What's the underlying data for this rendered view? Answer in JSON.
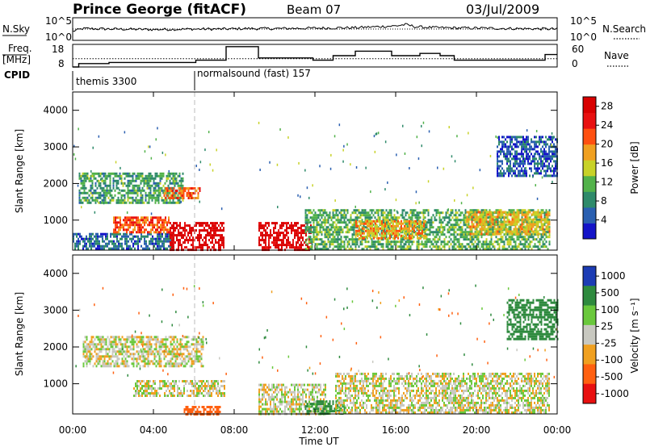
{
  "header": {
    "station": "Prince George (fitACF)",
    "beam": "Beam 07",
    "date": "03/Jul/2009"
  },
  "strip_panels": {
    "nsky": {
      "label": "N.Sky",
      "right_label": "N.Search",
      "tick_top": "10^5",
      "tick_bottom": "10^0"
    },
    "freq": {
      "label_top": "Freq.",
      "label_bottom": "[MHz]",
      "right_label": "Nave",
      "ticks_left": [
        "18",
        "8"
      ],
      "ticks_right": [
        "60",
        "0"
      ]
    },
    "cpid": {
      "label": "CPID",
      "segments": [
        "themis 3300",
        "normalsound (fast) 157"
      ]
    }
  },
  "axes": {
    "ylabel": "Slant Range [km]",
    "xlabel": "Time UT",
    "y_ticks": [
      "1000",
      "2000",
      "3000",
      "4000"
    ],
    "x_ticks": [
      "00:00",
      "04:00",
      "08:00",
      "12:00",
      "16:00",
      "20:00",
      "00:00"
    ]
  },
  "colorbars": {
    "power": {
      "label": "Power [dB]",
      "ticks": [
        "4",
        "8",
        "12",
        "16",
        "20",
        "24",
        "28"
      ]
    },
    "velocity": {
      "label": "Velocity [m s⁻¹]",
      "ticks": [
        "1000",
        "500",
        "100",
        "25",
        "-25",
        "-100",
        "-500",
        "-1000"
      ]
    }
  },
  "chart_data": [
    {
      "type": "line",
      "title": "N.Sky / N.Search",
      "x_unit": "hours UT",
      "x": [
        0,
        0.5,
        2,
        4,
        6,
        7.5,
        8.5,
        10,
        12,
        14,
        16,
        16.5,
        17,
        18,
        20,
        22,
        24
      ],
      "series": [
        {
          "name": "N.Sky",
          "values": [
            2,
            2.6,
            2.5,
            2.4,
            2.5,
            2.5,
            2.6,
            2.6,
            2.7,
            2.8,
            3.2,
            3.5,
            3.0,
            2.8,
            2.7,
            2.6,
            2.5
          ]
        }
      ],
      "ylim": [
        0,
        5
      ],
      "y_scale": "log10"
    },
    {
      "type": "line",
      "title": "Freq. [MHz] / Nave",
      "x_unit": "hours UT",
      "series": [
        {
          "name": "Freq.",
          "x": [
            0,
            0.3,
            0.3,
            1.8,
            1.8,
            6.1,
            6.1,
            7.6,
            7.6,
            9.2,
            9.2,
            11.9,
            11.9,
            12.9,
            12.9,
            14.0,
            14.0,
            15.8,
            15.8,
            17.2,
            17.2,
            18.2,
            18.2,
            18.9,
            18.9,
            23.4,
            23.4,
            24
          ],
          "values": [
            8,
            8,
            9.5,
            9.5,
            10,
            10,
            11,
            11,
            17,
            17,
            12,
            12,
            11,
            11,
            13,
            13,
            15,
            15,
            13,
            13,
            14,
            14,
            13,
            13,
            11,
            11,
            13.5,
            13.5
          ]
        },
        {
          "name": "Nave",
          "x": [
            0,
            24
          ],
          "values": [
            22,
            22
          ]
        }
      ],
      "ylim": [
        8,
        18
      ],
      "y2lim": [
        0,
        60
      ]
    },
    {
      "type": "heatmap",
      "title": "Power [dB]",
      "x_unit": "hours UT",
      "y_unit": "km",
      "xlim": [
        0,
        24
      ],
      "ylim": [
        180,
        4500
      ],
      "gap_no_data_hours": [
        [
          7.6,
          9.1
        ]
      ],
      "colorbar_range_db": [
        0,
        30
      ],
      "regions": [
        {
          "t0": 0.0,
          "t1": 5.0,
          "r0": 200,
          "r1": 650,
          "value": 6
        },
        {
          "t0": 0.3,
          "t1": 5.5,
          "r0": 1500,
          "r1": 2300,
          "value": 10
        },
        {
          "t0": 2.0,
          "t1": 4.8,
          "r0": 700,
          "r1": 1100,
          "value": 22
        },
        {
          "t0": 4.8,
          "t1": 7.5,
          "r0": 200,
          "r1": 950,
          "value": 29
        },
        {
          "t0": 4.5,
          "t1": 6.3,
          "r0": 1600,
          "r1": 1900,
          "value": 21
        },
        {
          "t0": 9.2,
          "t1": 11.8,
          "r0": 200,
          "r1": 950,
          "value": 29
        },
        {
          "t0": 11.5,
          "t1": 23.6,
          "r0": 200,
          "r1": 1300,
          "value": 11
        },
        {
          "t0": 14.0,
          "t1": 17.5,
          "r0": 500,
          "r1": 1000,
          "value": 18
        },
        {
          "t0": 19.5,
          "t1": 23.6,
          "r0": 650,
          "r1": 1250,
          "value": 17
        },
        {
          "t0": 21.0,
          "t1": 24.0,
          "r0": 2200,
          "r1": 3300,
          "value": 5
        }
      ]
    },
    {
      "type": "heatmap",
      "title": "Velocity [m s-1]",
      "x_unit": "hours UT",
      "y_unit": "km",
      "xlim": [
        0,
        24
      ],
      "ylim": [
        180,
        4500
      ],
      "gap_no_data_hours": [
        [
          7.6,
          9.1
        ]
      ],
      "colorbar_range_ms": [
        -1000,
        1000
      ],
      "regions": [
        {
          "t0": 0.5,
          "t1": 6.5,
          "r0": 1500,
          "r1": 2300,
          "value": 0
        },
        {
          "t0": 3.0,
          "t1": 7.5,
          "r0": 700,
          "r1": 1100,
          "value": 0
        },
        {
          "t0": 5.5,
          "t1": 7.3,
          "r0": 200,
          "r1": 400,
          "value": -250
        },
        {
          "t0": 9.2,
          "t1": 12.5,
          "r0": 200,
          "r1": 1000,
          "value": 0
        },
        {
          "t0": 11.5,
          "t1": 13.5,
          "r0": 200,
          "r1": 550,
          "value": 150
        },
        {
          "t0": 13.0,
          "t1": 23.6,
          "r0": 200,
          "r1": 1300,
          "value": 0
        },
        {
          "t0": 21.5,
          "t1": 24.0,
          "r0": 2200,
          "r1": 3300,
          "value": 300
        }
      ]
    }
  ]
}
